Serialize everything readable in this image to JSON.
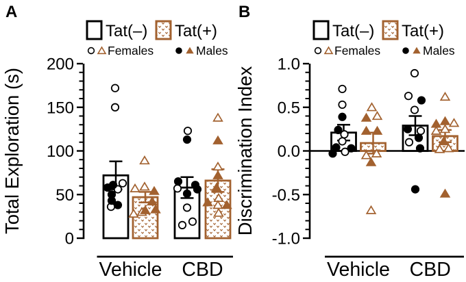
{
  "figure": {
    "background": "#FFFFFF",
    "colors": {
      "tat_neg": "#000000",
      "tat_pos": "#A2612F",
      "text": "#000000"
    },
    "legend": {
      "tat_neg_label": "Tat(–)",
      "tat_pos_label": "Tat(+)",
      "females_label": "Females",
      "males_label": "Males",
      "female_markers": "open circle, open triangle",
      "male_markers": "filled circle, filled triangle"
    }
  },
  "chart_data": [
    {
      "type": "bar",
      "panel_label": "A",
      "title": "",
      "xlabel": "",
      "ylabel": "Total Exploration (s)",
      "ylim": [
        0,
        200
      ],
      "ytick_values": [
        0,
        50,
        100,
        150,
        200
      ],
      "ytick_labels": [
        "0",
        "50",
        "100",
        "150",
        "200"
      ],
      "minor_tick_step": 10,
      "grid": false,
      "zero_line": false,
      "legend_position": "top",
      "categories": [
        "Vehicle",
        "CBD"
      ],
      "series_names": [
        "Tat(–)",
        "Tat(+)"
      ],
      "bars": [
        {
          "category": "Vehicle",
          "series": "Tat(–)",
          "mean": 72,
          "sem": 16,
          "female_points": [
            [
              -1,
              172
            ],
            [
              -1,
              150
            ],
            [
              10,
              63
            ],
            [
              3,
              56
            ],
            [
              -7,
              36
            ]
          ],
          "male_points": [
            [
              -12,
              58
            ],
            [
              -4,
              61
            ],
            [
              -6,
              50
            ],
            [
              -6,
              43
            ],
            [
              3,
              38
            ]
          ]
        },
        {
          "category": "Vehicle",
          "series": "Tat(+)",
          "mean": 47,
          "sem": 6,
          "female_points": [
            [
              -1,
              89
            ],
            [
              -15,
              57
            ],
            [
              -1,
              59
            ],
            [
              -17,
              28
            ],
            [
              -5,
              30
            ]
          ],
          "male_points": [
            [
              13,
              54
            ],
            [
              10,
              42
            ],
            [
              0,
              32
            ],
            [
              15,
              33
            ]
          ]
        },
        {
          "category": "CBD",
          "series": "Tat(–)",
          "mean": 58,
          "sem": 12,
          "female_points": [
            [
              1,
              123
            ],
            [
              -14,
              57
            ],
            [
              0,
              35
            ],
            [
              8,
              19
            ],
            [
              -7,
              15
            ]
          ],
          "male_points": [
            [
              0,
              113
            ],
            [
              -13,
              65
            ],
            [
              12,
              61
            ],
            [
              15,
              56
            ],
            [
              0,
              51
            ]
          ]
        },
        {
          "category": "CBD",
          "series": "Tat(+)",
          "mean": 66,
          "sem": 13,
          "female_points": [
            [
              0,
              138
            ],
            [
              0,
              82
            ],
            [
              1,
              46
            ],
            [
              0,
              38
            ],
            [
              1,
              29
            ]
          ],
          "male_points": [
            [
              0,
              112
            ],
            [
              0,
              72
            ],
            [
              -2,
              58
            ],
            [
              -15,
              41
            ],
            [
              13,
              38
            ]
          ]
        }
      ]
    },
    {
      "type": "bar",
      "panel_label": "B",
      "title": "",
      "xlabel": "",
      "ylabel": "Discrimination Index",
      "ylim": [
        -1.0,
        1.0
      ],
      "ytick_values": [
        -1.0,
        -0.5,
        0.0,
        0.5,
        1.0
      ],
      "ytick_labels": [
        "-1.0",
        "-0.5",
        "0.0",
        "0.5",
        "1.0"
      ],
      "minor_tick_step": 0.1,
      "grid": false,
      "zero_line": true,
      "legend_position": "top",
      "categories": [
        "Vehicle",
        "CBD"
      ],
      "series_names": [
        "Tat(–)",
        "Tat(+)"
      ],
      "bars": [
        {
          "category": "Vehicle",
          "series": "Tat(–)",
          "mean": 0.21,
          "sem": 0.09,
          "female_points": [
            [
              -2,
              0.71
            ],
            [
              -2,
              0.53
            ],
            [
              1,
              0.19
            ],
            [
              -2,
              0.11
            ],
            [
              2,
              -0.01
            ]
          ],
          "male_points": [
            [
              -2,
              0.39
            ],
            [
              -8,
              0.24
            ],
            [
              -11,
              0.04
            ],
            [
              11,
              0.03
            ],
            [
              -16,
              -0.03
            ]
          ]
        },
        {
          "category": "Vehicle",
          "series": "Tat(+)",
          "mean": 0.09,
          "sem": 0.12,
          "female_points": [
            [
              -2,
              0.5
            ],
            [
              6,
              0.4
            ],
            [
              -10,
              -0.05
            ],
            [
              5,
              -0.03
            ],
            [
              -3,
              -0.68
            ]
          ],
          "male_points": [
            [
              -10,
              0.38
            ],
            [
              -10,
              0.23
            ],
            [
              6,
              0.23
            ],
            [
              -3,
              -0.13
            ]
          ]
        },
        {
          "category": "CBD",
          "series": "Tat(–)",
          "mean": 0.29,
          "sem": 0.11,
          "female_points": [
            [
              -1,
              0.89
            ],
            [
              -10,
              0.63
            ],
            [
              -1,
              0.47
            ],
            [
              8,
              0.23
            ],
            [
              -9,
              0.1
            ]
          ],
          "male_points": [
            [
              9,
              0.58
            ],
            [
              -11,
              0.25
            ],
            [
              5,
              0.15
            ],
            [
              7,
              0.03
            ],
            [
              0,
              -0.44
            ]
          ]
        },
        {
          "category": "CBD",
          "series": "Tat(+)",
          "mean": 0.17,
          "sem": 0.07,
          "female_points": [
            [
              0,
              0.62
            ],
            [
              13,
              0.32
            ],
            [
              0,
              0.25
            ],
            [
              -13,
              0.23
            ],
            [
              -8,
              0.02
            ],
            [
              5,
              0.03
            ]
          ],
          "male_points": [
            [
              -13,
              0.31
            ],
            [
              0,
              0.34
            ],
            [
              -2,
              0.11
            ],
            [
              0,
              -0.49
            ]
          ]
        }
      ]
    }
  ]
}
